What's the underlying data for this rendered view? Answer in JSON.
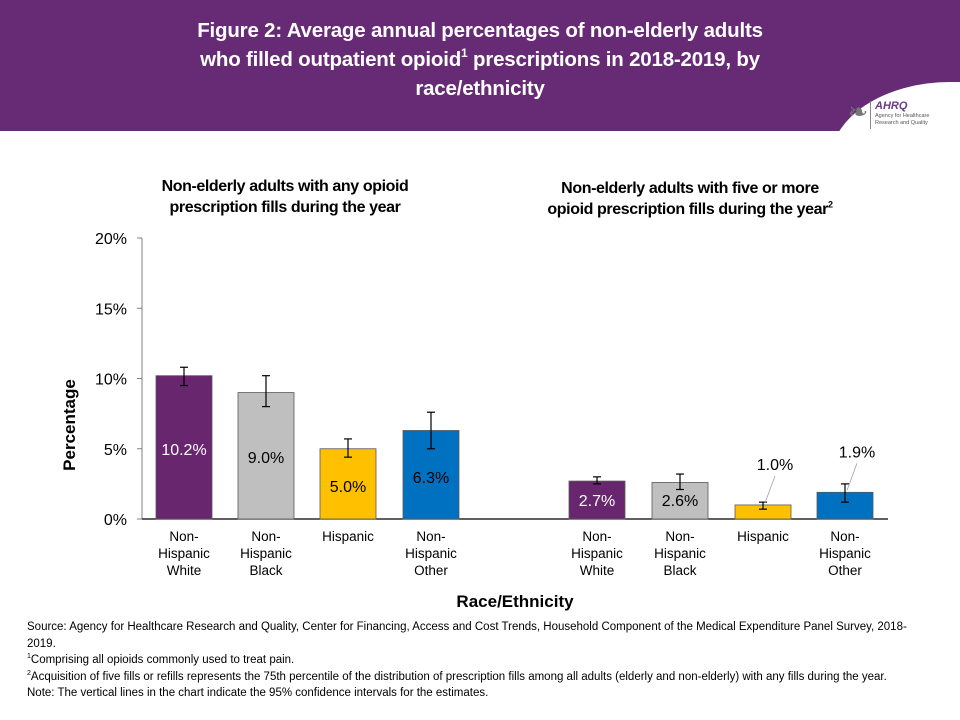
{
  "header": {
    "title_line1": "Figure 2: Average annual percentages of non-elderly adults",
    "title_line2a": "who filled outpatient opioid",
    "title_sup": "1",
    "title_line2b": " prescriptions in 2018-2019, by",
    "title_line3": "race/ethnicity",
    "logo_text": "AHRQ",
    "logo_subtext": "Agency for Healthcare Research and Quality",
    "logo_icon": "hhs-eagle-icon",
    "background_color": "#672a75"
  },
  "chart_data": {
    "type": "bar",
    "title": "Figure 2: Average annual percentages of non-elderly adults who filled outpatient opioid prescriptions in 2018-2019, by race/ethnicity",
    "xlabel": "Race/Ethnicity",
    "ylabel": "Percentage",
    "ylim": [
      0,
      20
    ],
    "yticks": [
      "0%",
      "5%",
      "10%",
      "15%",
      "20%"
    ],
    "ytick_values": [
      0,
      5,
      10,
      15,
      20
    ],
    "grid": false,
    "legend": "none",
    "category_labels": [
      [
        "Non-",
        "Hispanic",
        "White"
      ],
      [
        "Non-",
        "Hispanic",
        "Black"
      ],
      [
        "Hispanic"
      ],
      [
        "Non-",
        "Hispanic",
        "Other"
      ]
    ],
    "colors": [
      "#68266f",
      "#bfbfbf",
      "#ffc000",
      "#0070c0"
    ],
    "panels": [
      {
        "title": "Non-elderly adults with any opioid prescription fills during the year",
        "title_line1": "Non-elderly adults with any opioid",
        "title_line2": "prescription fills during the year",
        "categories": [
          "Non-Hispanic White",
          "Non-Hispanic Black",
          "Hispanic",
          "Non-Hispanic Other"
        ],
        "values": [
          10.2,
          9.0,
          5.0,
          6.3
        ],
        "labels": [
          "10.2%",
          "9.0%",
          "5.0%",
          "6.3%"
        ],
        "label_colors": [
          "#ffffff",
          "#000000",
          "#000000",
          "#000000"
        ],
        "ci_lower": [
          9.5,
          8.0,
          4.4,
          5.0
        ],
        "ci_upper": [
          10.8,
          10.2,
          5.7,
          7.6
        ]
      },
      {
        "title": "Non-elderly adults with five or more opioid prescription fills during the year",
        "title_line1": "Non-elderly adults with five or more",
        "title_line2": "opioid prescription fills  during the year",
        "title_sup": "2",
        "categories": [
          "Non-Hispanic White",
          "Non-Hispanic Black",
          "Hispanic",
          "Non-Hispanic Other"
        ],
        "values": [
          2.7,
          2.6,
          1.0,
          1.9
        ],
        "labels": [
          "2.7%",
          "2.6%",
          "1.0%",
          "1.9%"
        ],
        "label_colors": [
          "#ffffff",
          "#000000",
          "#000000",
          "#000000"
        ],
        "label_outside": [
          false,
          false,
          true,
          true
        ],
        "ci_lower": [
          2.5,
          2.1,
          0.7,
          1.2
        ],
        "ci_upper": [
          3.0,
          3.2,
          1.2,
          2.5
        ]
      }
    ]
  },
  "notes": {
    "source": "Source: Agency for Healthcare Research and Quality, Center for Financing, Access and Cost Trends, Household Component of the Medical Expenditure Panel Survey, 2018-2019.",
    "footnote1_mark": "1",
    "footnote1": "Comprising all opioids commonly used to treat pain.",
    "footnote2_mark": "2",
    "footnote2": "Acquisition of five fills or refills represents the 75th percentile of the distribution of prescription fills among all adults (elderly and non-elderly) with any fills during the year.",
    "note": "Note: The vertical lines in the chart indicate the 95% confidence intervals for the estimates."
  }
}
